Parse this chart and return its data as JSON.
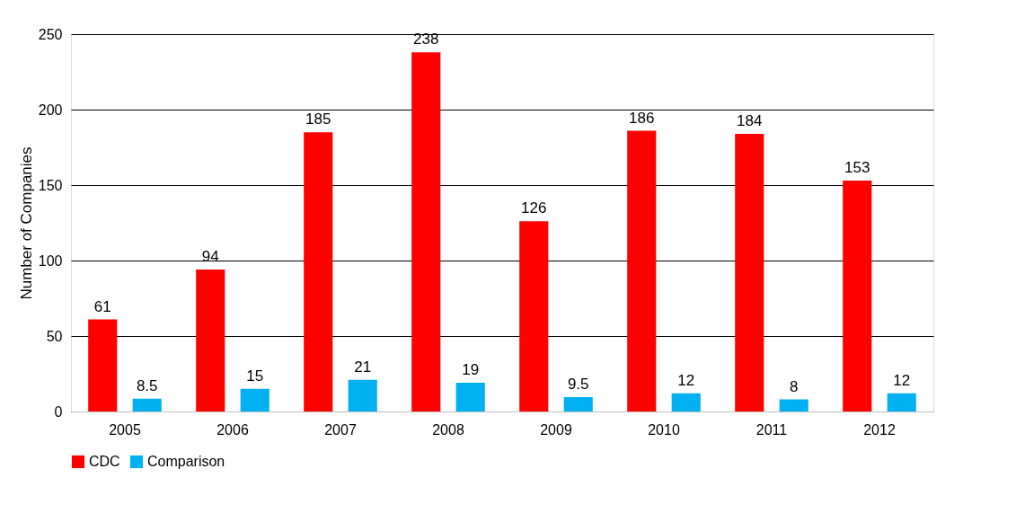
{
  "chart_data": {
    "type": "bar",
    "ylabel": "Number of Companies",
    "categories": [
      "2005",
      "2006",
      "2007",
      "2008",
      "2009",
      "2010",
      "2011",
      "2012"
    ],
    "series": [
      {
        "name": "CDC",
        "color": "#ff0000",
        "values": [
          61,
          94,
          185,
          238,
          126,
          186,
          184,
          153
        ]
      },
      {
        "name": "Comparison",
        "color": "#00b0f0",
        "values": [
          8.5,
          15,
          21,
          19,
          9.5,
          12,
          8,
          12
        ]
      }
    ],
    "ylim": [
      0,
      250
    ],
    "yticks": [
      0,
      50,
      100,
      150,
      200,
      250
    ],
    "grid": "y",
    "legend": "bottom",
    "data_labels": true
  }
}
